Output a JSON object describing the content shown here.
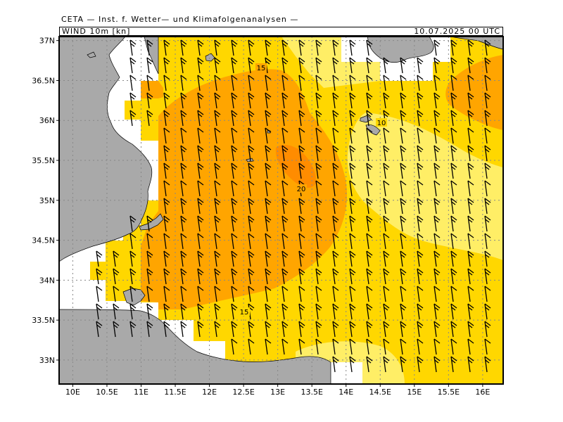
{
  "header": {
    "title": "CETA — Inst. f. Wetter— und Klimafolgenanalysen —",
    "parameter": "WIND 10m [kn]",
    "valid_time": "10.07.2025 00 UTC"
  },
  "map": {
    "lon_range": [
      9.8,
      16.3
    ],
    "lat_range": [
      32.7,
      37.05
    ],
    "lon_ticks": [
      10,
      10.5,
      11,
      11.5,
      12,
      12.5,
      13,
      13.5,
      14,
      14.5,
      15,
      15.5,
      16
    ],
    "lon_tick_labels": [
      "10E",
      "10.5E",
      "11E",
      "11.5E",
      "12E",
      "12.5E",
      "13E",
      "13.5E",
      "14E",
      "14.5E",
      "15E",
      "15.5E",
      "16E"
    ],
    "lat_ticks": [
      33,
      33.5,
      34,
      34.5,
      35,
      35.5,
      36,
      36.5,
      37
    ],
    "lat_tick_labels": [
      "33N",
      "33.5N",
      "34N",
      "34.5N",
      "35N",
      "35.5N",
      "36N",
      "36.5N",
      "37N"
    ],
    "grid": true,
    "colors": {
      "land": "#a9a9a9",
      "white_below_10": "#ffffff",
      "kn_10_15": "#ffd700",
      "kn_5_10_light": "#ffee66",
      "kn_15_20": "#ffa500",
      "kn_20_plus": "#ff8c00"
    }
  },
  "contour_labels": [
    {
      "text": "15"
    },
    {
      "text": "10"
    },
    {
      "text": "20"
    },
    {
      "text": "15"
    }
  ],
  "wind_barbs": {
    "unit": "kn",
    "dominant_direction": "northwest",
    "typical_speed": "10-20 kn"
  }
}
